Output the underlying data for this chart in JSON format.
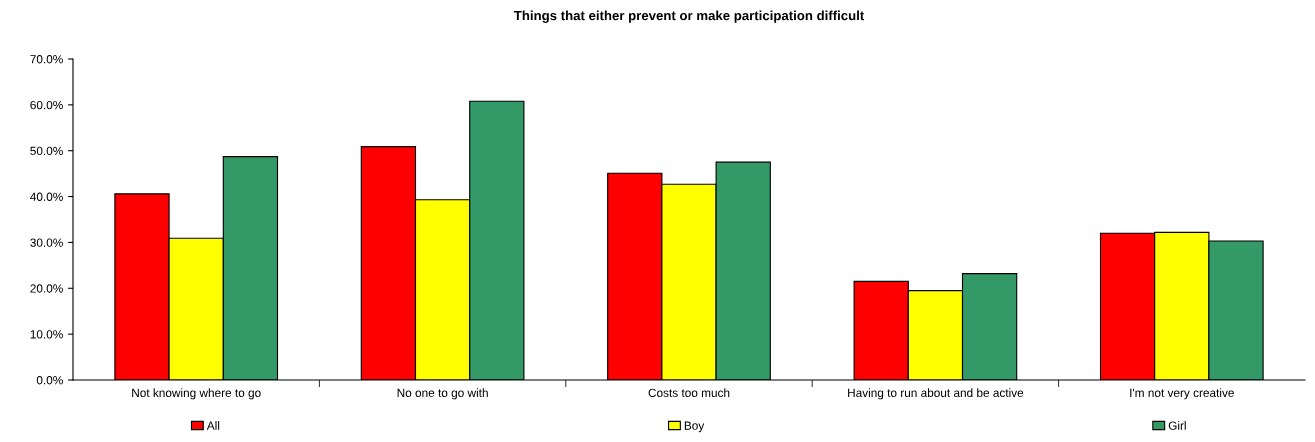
{
  "chart_data": {
    "type": "bar",
    "title": "Things that either prevent or make participation difficult",
    "categories": [
      "Not knowing where to go",
      "No one to go with",
      "Costs too much",
      "Having to run about and be active",
      "I'm not very creative"
    ],
    "series": [
      {
        "name": "All",
        "color": "#ff0000",
        "values": [
          40.6,
          50.9,
          45.1,
          21.5,
          32.0
        ]
      },
      {
        "name": "Boy",
        "color": "#ffff00",
        "values": [
          30.9,
          39.3,
          42.7,
          19.5,
          32.2
        ]
      },
      {
        "name": "Girl",
        "color": "#339966",
        "values": [
          48.7,
          60.8,
          47.5,
          23.2,
          30.3
        ]
      }
    ],
    "ylim": [
      0,
      70
    ],
    "yticks": [
      {
        "value": 0,
        "label": "0.0%"
      },
      {
        "value": 10,
        "label": "10.0%"
      },
      {
        "value": 20,
        "label": "20.0%"
      },
      {
        "value": 30,
        "label": "30.0%"
      },
      {
        "value": 40,
        "label": "40.0%"
      },
      {
        "value": 50,
        "label": "50.0%"
      },
      {
        "value": 60,
        "label": "60.0%"
      },
      {
        "value": 70,
        "label": "70.0%"
      }
    ],
    "grid": false,
    "legend": "bottom"
  }
}
